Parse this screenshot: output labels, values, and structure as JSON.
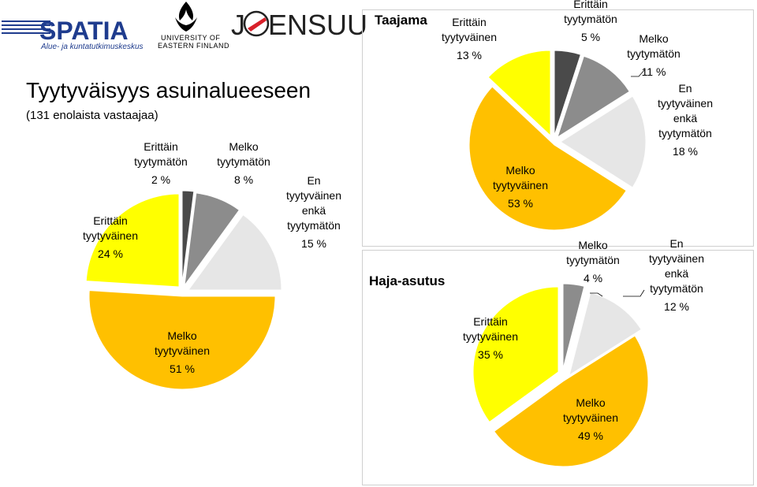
{
  "logos": {
    "spatia_name": "SPATIA",
    "spatia_sub": "Alue- ja kuntatutkimuskeskus",
    "uef_line1": "UNIVERSITY OF",
    "uef_line2": "EASTERN FINLAND",
    "joensuu_j": "J",
    "joensuu_rest": "ENSUU"
  },
  "page": {
    "title": "Tyytyväisyys asuinalueeseen",
    "subtitle": "(131 enolaista vastaajaa)"
  },
  "colors": {
    "erittain_tyytyvainen": "#ffff00",
    "melko_tyytyvainen": "#ffc000",
    "en_tyytyvainen_enka_tyytymaton": "#e6e6e6",
    "melko_tyytymaton": "#8c8c8c",
    "erittain_tyytymaton": "#4a4a4a"
  },
  "chart_data": [
    {
      "type": "pie",
      "title": "",
      "categories": [
        "Erittäin tyytyväinen",
        "Melko tyytyväinen",
        "En tyytyväinen enkä tyytymätön",
        "Melko tyytymätön",
        "Erittäin tyytymätön"
      ],
      "values": [
        24,
        51,
        15,
        8,
        2
      ],
      "labels": [
        {
          "lines": [
            "Erittäin",
            "tyytyväinen"
          ],
          "pct": "24 %"
        },
        {
          "lines": [
            "Melko",
            "tyytyväinen"
          ],
          "pct": "51 %"
        },
        {
          "lines": [
            "En",
            "tyytyväinen",
            "enkä",
            "tyytymätön"
          ],
          "pct": "15 %"
        },
        {
          "lines": [
            "Melko",
            "tyytymätön"
          ],
          "pct": "8 %"
        },
        {
          "lines": [
            "Erittäin",
            "tyytymätön"
          ],
          "pct": "2 %"
        }
      ]
    },
    {
      "type": "pie",
      "title": "Taajama",
      "categories": [
        "Erittäin tyytyväinen",
        "Melko tyytyväinen",
        "En tyytyväinen enkä tyytymätön",
        "Melko tyytymätön",
        "Erittäin tyytymätön"
      ],
      "values": [
        13,
        53,
        18,
        11,
        5
      ],
      "labels": [
        {
          "lines": [
            "Erittäin",
            "tyytyväinen"
          ],
          "pct": "13 %"
        },
        {
          "lines": [
            "Melko",
            "tyytyväinen"
          ],
          "pct": "53 %"
        },
        {
          "lines": [
            "En",
            "tyytyväinen",
            "enkä",
            "tyytymätön"
          ],
          "pct": "18 %"
        },
        {
          "lines": [
            "Melko",
            "tyytymätön"
          ],
          "pct": "11 %"
        },
        {
          "lines": [
            "Erittäin",
            "tyytymätön"
          ],
          "pct": "5 %"
        }
      ]
    },
    {
      "type": "pie",
      "title": "Haja-asutus",
      "categories": [
        "Erittäin tyytyväinen",
        "Melko tyytyväinen",
        "En tyytyväinen enkä tyytymätön",
        "Melko tyytymätön"
      ],
      "values": [
        35,
        49,
        12,
        4
      ],
      "labels": [
        {
          "lines": [
            "Erittäin",
            "tyytyväinen"
          ],
          "pct": "35 %"
        },
        {
          "lines": [
            "Melko",
            "tyytyväinen"
          ],
          "pct": "49 %"
        },
        {
          "lines": [
            "En",
            "tyytyväinen",
            "enkä",
            "tyytymätön"
          ],
          "pct": "12 %"
        },
        {
          "lines": [
            "Melko",
            "tyytymätön"
          ],
          "pct": "4 %"
        }
      ]
    }
  ]
}
